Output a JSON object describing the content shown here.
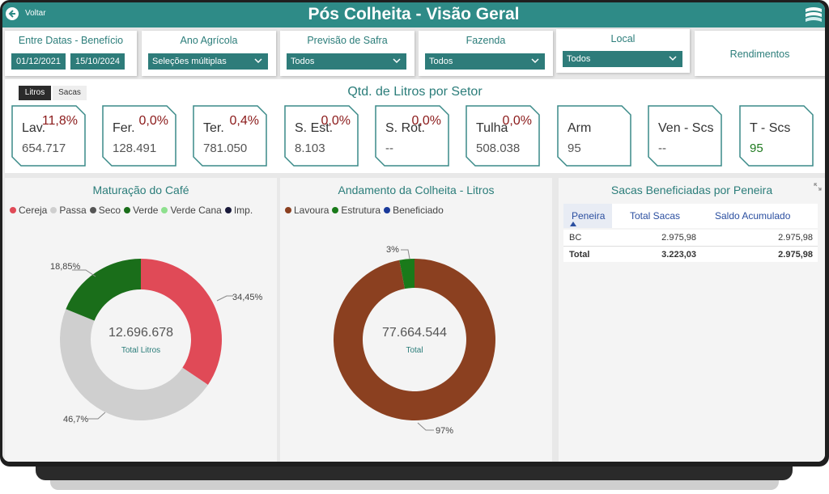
{
  "header": {
    "back_label": "Voltar",
    "title": "Pós Colheita - Visão Geral"
  },
  "filters": {
    "entre_datas": {
      "label": "Entre Datas - Benefício",
      "start": "01/12/2021",
      "end": "15/10/2024"
    },
    "ano_agricola": {
      "label": "Ano Agrícola",
      "value": "Seleções múltiplas"
    },
    "previsao_safra": {
      "label": "Previsão de Safra",
      "value": "Todos"
    },
    "fazenda": {
      "label": "Fazenda",
      "value": "Todos"
    },
    "local": {
      "label": "Local",
      "value": "Todos"
    },
    "rendimentos": {
      "label": "Rendimentos"
    }
  },
  "sector": {
    "toggle_litros": "Litros",
    "toggle_sacas": "Sacas",
    "title": "Qtd. de Litros por Setor",
    "kpis": [
      {
        "name": "Lav.",
        "pct": "11,8%",
        "value": "654.717"
      },
      {
        "name": "Fer.",
        "pct": "0,0%",
        "value": "128.491"
      },
      {
        "name": "Ter.",
        "pct": "0,4%",
        "value": "781.050"
      },
      {
        "name": "S. Est.",
        "pct": "0,0%",
        "value": "8.103"
      },
      {
        "name": "S. Rot.",
        "pct": "0,0%",
        "value": "--"
      },
      {
        "name": "Tulha",
        "pct": "0,0%",
        "value": "508.038"
      },
      {
        "name": "Arm",
        "pct": "",
        "value": "95"
      },
      {
        "name": "Ven - Scs",
        "pct": "",
        "value": "--"
      },
      {
        "name": "T - Scs",
        "pct": "",
        "value": "95"
      }
    ]
  },
  "maturacao": {
    "title": "Maturação do Café",
    "legend": [
      {
        "name": "Cereja",
        "color": "#e04a57"
      },
      {
        "name": "Passa",
        "color": "#cfcfcf"
      },
      {
        "name": "Seco",
        "color": "#555555"
      },
      {
        "name": "Verde",
        "color": "#1a6e1a"
      },
      {
        "name": "Verde Cana",
        "color": "#8ee08e"
      },
      {
        "name": "Imp.",
        "color": "#1a1a3a"
      }
    ],
    "center_value": "12.696.678",
    "center_label": "Total Litros",
    "label_cereja": "34,45%",
    "label_passa": "46,7%",
    "label_verde": "18,85%"
  },
  "andamento": {
    "title": "Andamento da Colheita - Litros",
    "legend": [
      {
        "name": "Lavoura",
        "color": "#8b4020"
      },
      {
        "name": "Estrutura",
        "color": "#1a7a1a"
      },
      {
        "name": "Beneficiado",
        "color": "#1a3a9a"
      }
    ],
    "center_value": "77.664.544",
    "center_label": "Total",
    "label_estrutura": "3%",
    "label_lavoura": "97%"
  },
  "peneira": {
    "title": "Sacas Beneficiadas por Peneira",
    "columns": [
      "Peneira",
      "Total Sacas",
      "Saldo Acumulado"
    ],
    "rows": [
      {
        "peneira": "BC",
        "total": "2.975,98",
        "saldo": "2.975,98"
      }
    ],
    "total_row": {
      "peneira": "Total",
      "total": "3.223,03",
      "saldo": "2.975,98"
    }
  },
  "chart_data": [
    {
      "type": "pie",
      "title": "Maturação do Café",
      "categories": [
        "Cereja",
        "Passa",
        "Verde"
      ],
      "values": [
        34.45,
        46.7,
        18.85
      ],
      "colors": [
        "#e04a57",
        "#cfcfcf",
        "#1a6e1a"
      ]
    },
    {
      "type": "pie",
      "title": "Andamento da Colheita - Litros",
      "categories": [
        "Lavoura",
        "Estrutura"
      ],
      "values": [
        97,
        3
      ],
      "colors": [
        "#8b4020",
        "#1a7a1a"
      ]
    }
  ]
}
